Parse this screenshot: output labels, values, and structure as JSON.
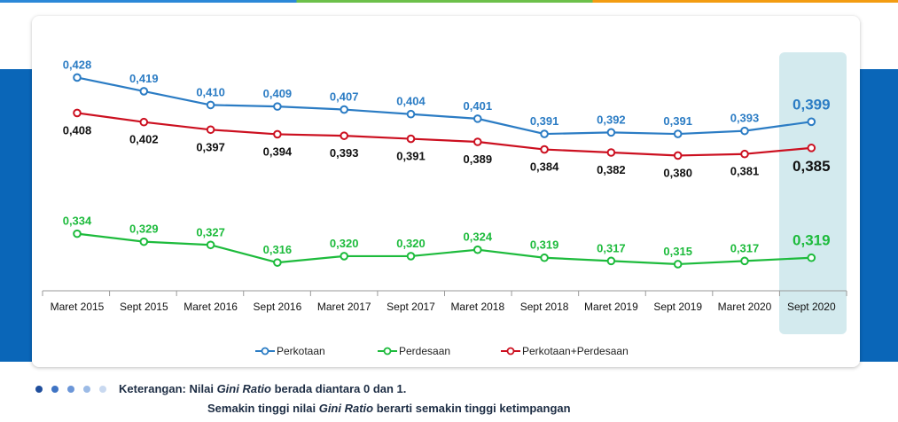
{
  "chart_data": {
    "type": "line",
    "categories": [
      "Maret 2015",
      "Sept 2015",
      "Maret 2016",
      "Sept 2016",
      "Maret 2017",
      "Sept 2017",
      "Maret 2018",
      "Sept 2018",
      "Maret 2019",
      "Sept 2019",
      "Maret 2020",
      "Sept 2020"
    ],
    "series": [
      {
        "name": "Perkotaan",
        "color": "#2b7cc4",
        "values": [
          0.428,
          0.419,
          0.41,
          0.409,
          0.407,
          0.404,
          0.401,
          0.391,
          0.392,
          0.391,
          0.393,
          0.399
        ],
        "labels": [
          "0,428",
          "0,419",
          "0,410",
          "0,409",
          "0,407",
          "0,404",
          "0,401",
          "0,391",
          "0,392",
          "0,391",
          "0,393",
          "0,399"
        ]
      },
      {
        "name": "Perdesaan",
        "color": "#1dbb3c",
        "values": [
          0.334,
          0.329,
          0.327,
          0.316,
          0.32,
          0.32,
          0.324,
          0.319,
          0.317,
          0.315,
          0.317,
          0.319
        ],
        "labels": [
          "0,334",
          "0,329",
          "0,327",
          "0,316",
          "0,320",
          "0,320",
          "0,324",
          "0,319",
          "0,317",
          "0,315",
          "0,317",
          "0,319"
        ]
      },
      {
        "name": "Perkotaan+Perdesaan",
        "color": "#cc1020",
        "values": [
          0.408,
          0.402,
          0.397,
          0.394,
          0.393,
          0.391,
          0.389,
          0.384,
          0.382,
          0.38,
          0.381,
          0.385
        ],
        "labels": [
          "0,408",
          "0,402",
          "0,397",
          "0,394",
          "0,393",
          "0,391",
          "0,389",
          "0,384",
          "0,382",
          "0,380",
          "0,381",
          "0,385"
        ]
      }
    ],
    "highlight_category": "Sept 2020",
    "legend_position": "bottom",
    "grid": false
  },
  "footer": {
    "note_label": "Keterangan:",
    "note_line1_pre": "Nilai ",
    "note_line1_em": "Gini Ratio",
    "note_line1_post": " berada diantara 0 dan 1.",
    "note_line2_pre": "Semakin tinggi nilai ",
    "note_line2_em": "Gini Ratio",
    "note_line2_post": " berarti semakin tinggi ketimpangan"
  },
  "colors": {
    "accent_blue": "#0a66b8",
    "dot_colors": [
      "#1f4e9c",
      "#3f74c4",
      "#6b96d8",
      "#9cbbe6",
      "#c9d9f0"
    ]
  }
}
